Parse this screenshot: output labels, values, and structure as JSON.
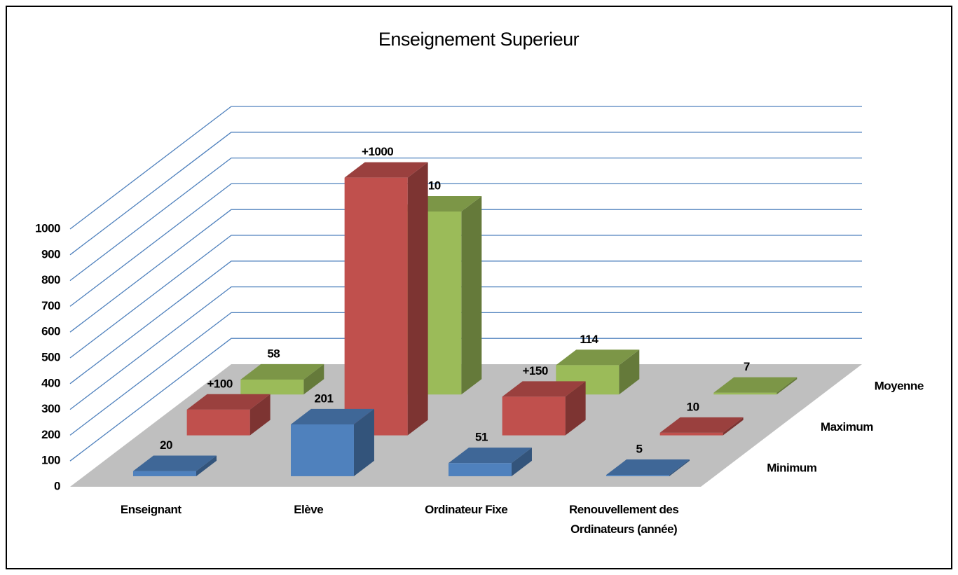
{
  "chart_data": {
    "type": "bar3d",
    "title": "Enseignement Superieur",
    "categories": [
      "Enseignant",
      "Elève",
      "Ordinateur Fixe",
      "Renouvellement des Ordinateurs (année)"
    ],
    "series": [
      {
        "name": "Minimum",
        "color": "#4f81bd",
        "values": [
          20,
          201,
          51,
          5
        ]
      },
      {
        "name": "Maximum",
        "color": "#c0504d",
        "values": [
          100,
          1000,
          150,
          10
        ],
        "value_labels": [
          "+100",
          "+1000",
          "+150",
          "10"
        ]
      },
      {
        "name": "Moyenne",
        "color": "#9bbb59",
        "values": [
          58,
          710,
          114,
          7
        ]
      }
    ],
    "ylim": [
      0,
      1000
    ],
    "yticks": [
      0,
      100,
      200,
      300,
      400,
      500,
      600,
      700,
      800,
      900,
      1000
    ],
    "grid": true
  }
}
